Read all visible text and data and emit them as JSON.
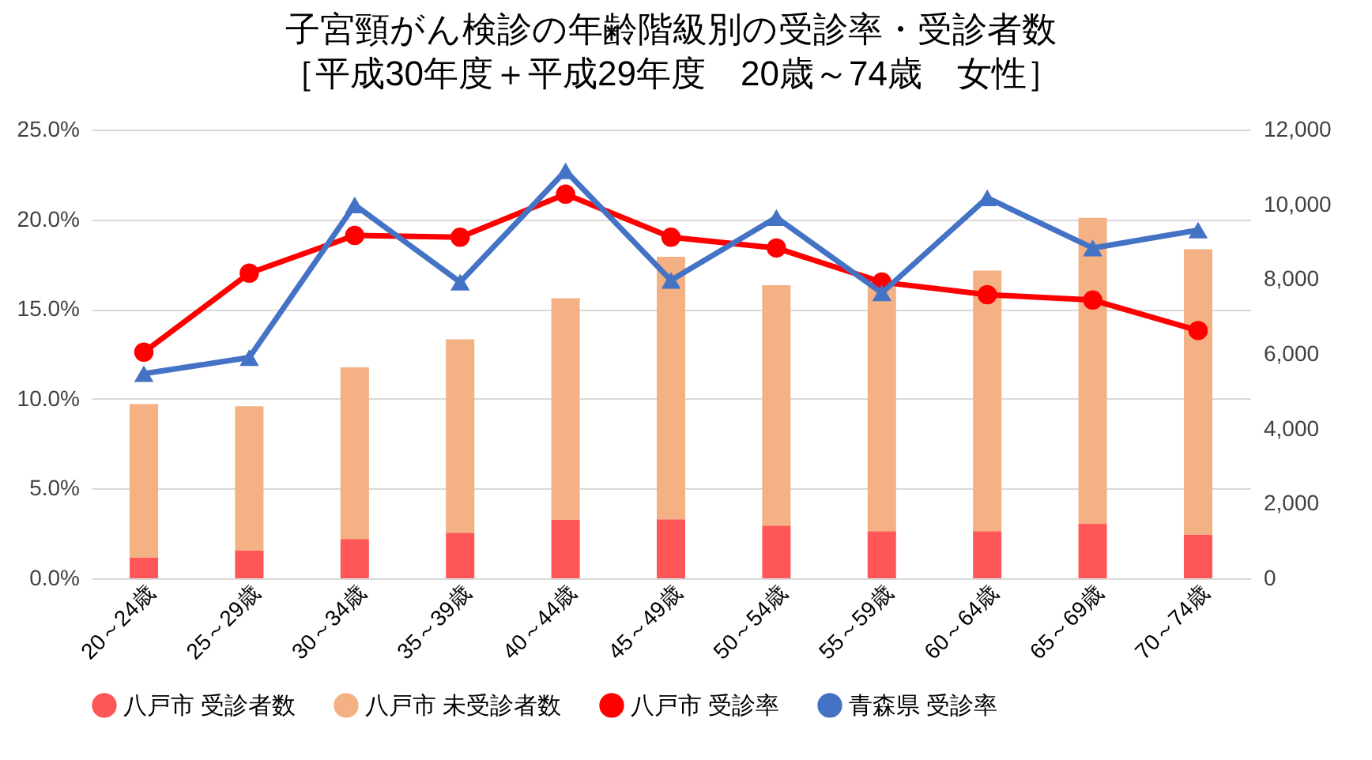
{
  "chart_data": {
    "type": "bar",
    "title": "子宮頸がん検診の年齢階級別の受診率・受診者数",
    "subtitle": "［平成30年度＋平成29年度　20歳～74歳　女性］",
    "categories": [
      "20～24歳",
      "25～29歳",
      "30～34歳",
      "35～39歳",
      "40～44歳",
      "45～49歳",
      "50～54歳",
      "55～59歳",
      "60～64歳",
      "65～69歳",
      "70～74歳"
    ],
    "stacked": true,
    "grid": "y",
    "legend": "bottom",
    "ylim": [
      0,
      25
    ],
    "yticks": [
      {
        "value": 0,
        "label": "0.0%"
      },
      {
        "value": 5,
        "label": "5.0%"
      },
      {
        "value": 10,
        "label": "10.0%"
      },
      {
        "value": 15,
        "label": "15.0%"
      },
      {
        "value": 20,
        "label": "20.0%"
      },
      {
        "value": 25,
        "label": "25.0%"
      }
    ],
    "y2lim": [
      0,
      12000
    ],
    "y2ticks": [
      0,
      {
        "value": 2000,
        "label": "2,000"
      },
      {
        "value": 4000,
        "label": "4,000"
      },
      {
        "value": 6000,
        "label": "6,000"
      },
      {
        "value": 8000,
        "label": "8,000"
      },
      {
        "value": 10000,
        "label": "10,000"
      },
      {
        "value": 12000,
        "label": "12,000"
      }
    ],
    "series": [
      {
        "name": "八戸市 受診者数",
        "type": "bar",
        "axis": "y2",
        "color": "#ff5757",
        "values": [
          560,
          750,
          1050,
          1220,
          1570,
          1580,
          1410,
          1260,
          1260,
          1470,
          1170
        ]
      },
      {
        "name": "八戸市 未受診者数",
        "type": "bar",
        "axis": "y2",
        "color": "#f4b183",
        "values": [
          4100,
          3850,
          4590,
          5170,
          5920,
          7020,
          6430,
          6540,
          6970,
          8170,
          7630
        ]
      },
      {
        "name": "八戸市 受診率",
        "type": "line",
        "axis": "y",
        "marker": "circle",
        "color": "#ff0000",
        "values": [
          12.6,
          17.0,
          19.1,
          19.0,
          21.4,
          19.0,
          18.4,
          16.5,
          15.8,
          15.5,
          13.8
        ]
      },
      {
        "name": "青森県 受診率",
        "type": "line",
        "axis": "y",
        "marker": "triangle",
        "color": "#4472c4",
        "values": [
          11.4,
          12.3,
          20.8,
          16.5,
          22.7,
          16.6,
          20.1,
          15.9,
          21.2,
          18.4,
          19.4
        ]
      }
    ]
  }
}
